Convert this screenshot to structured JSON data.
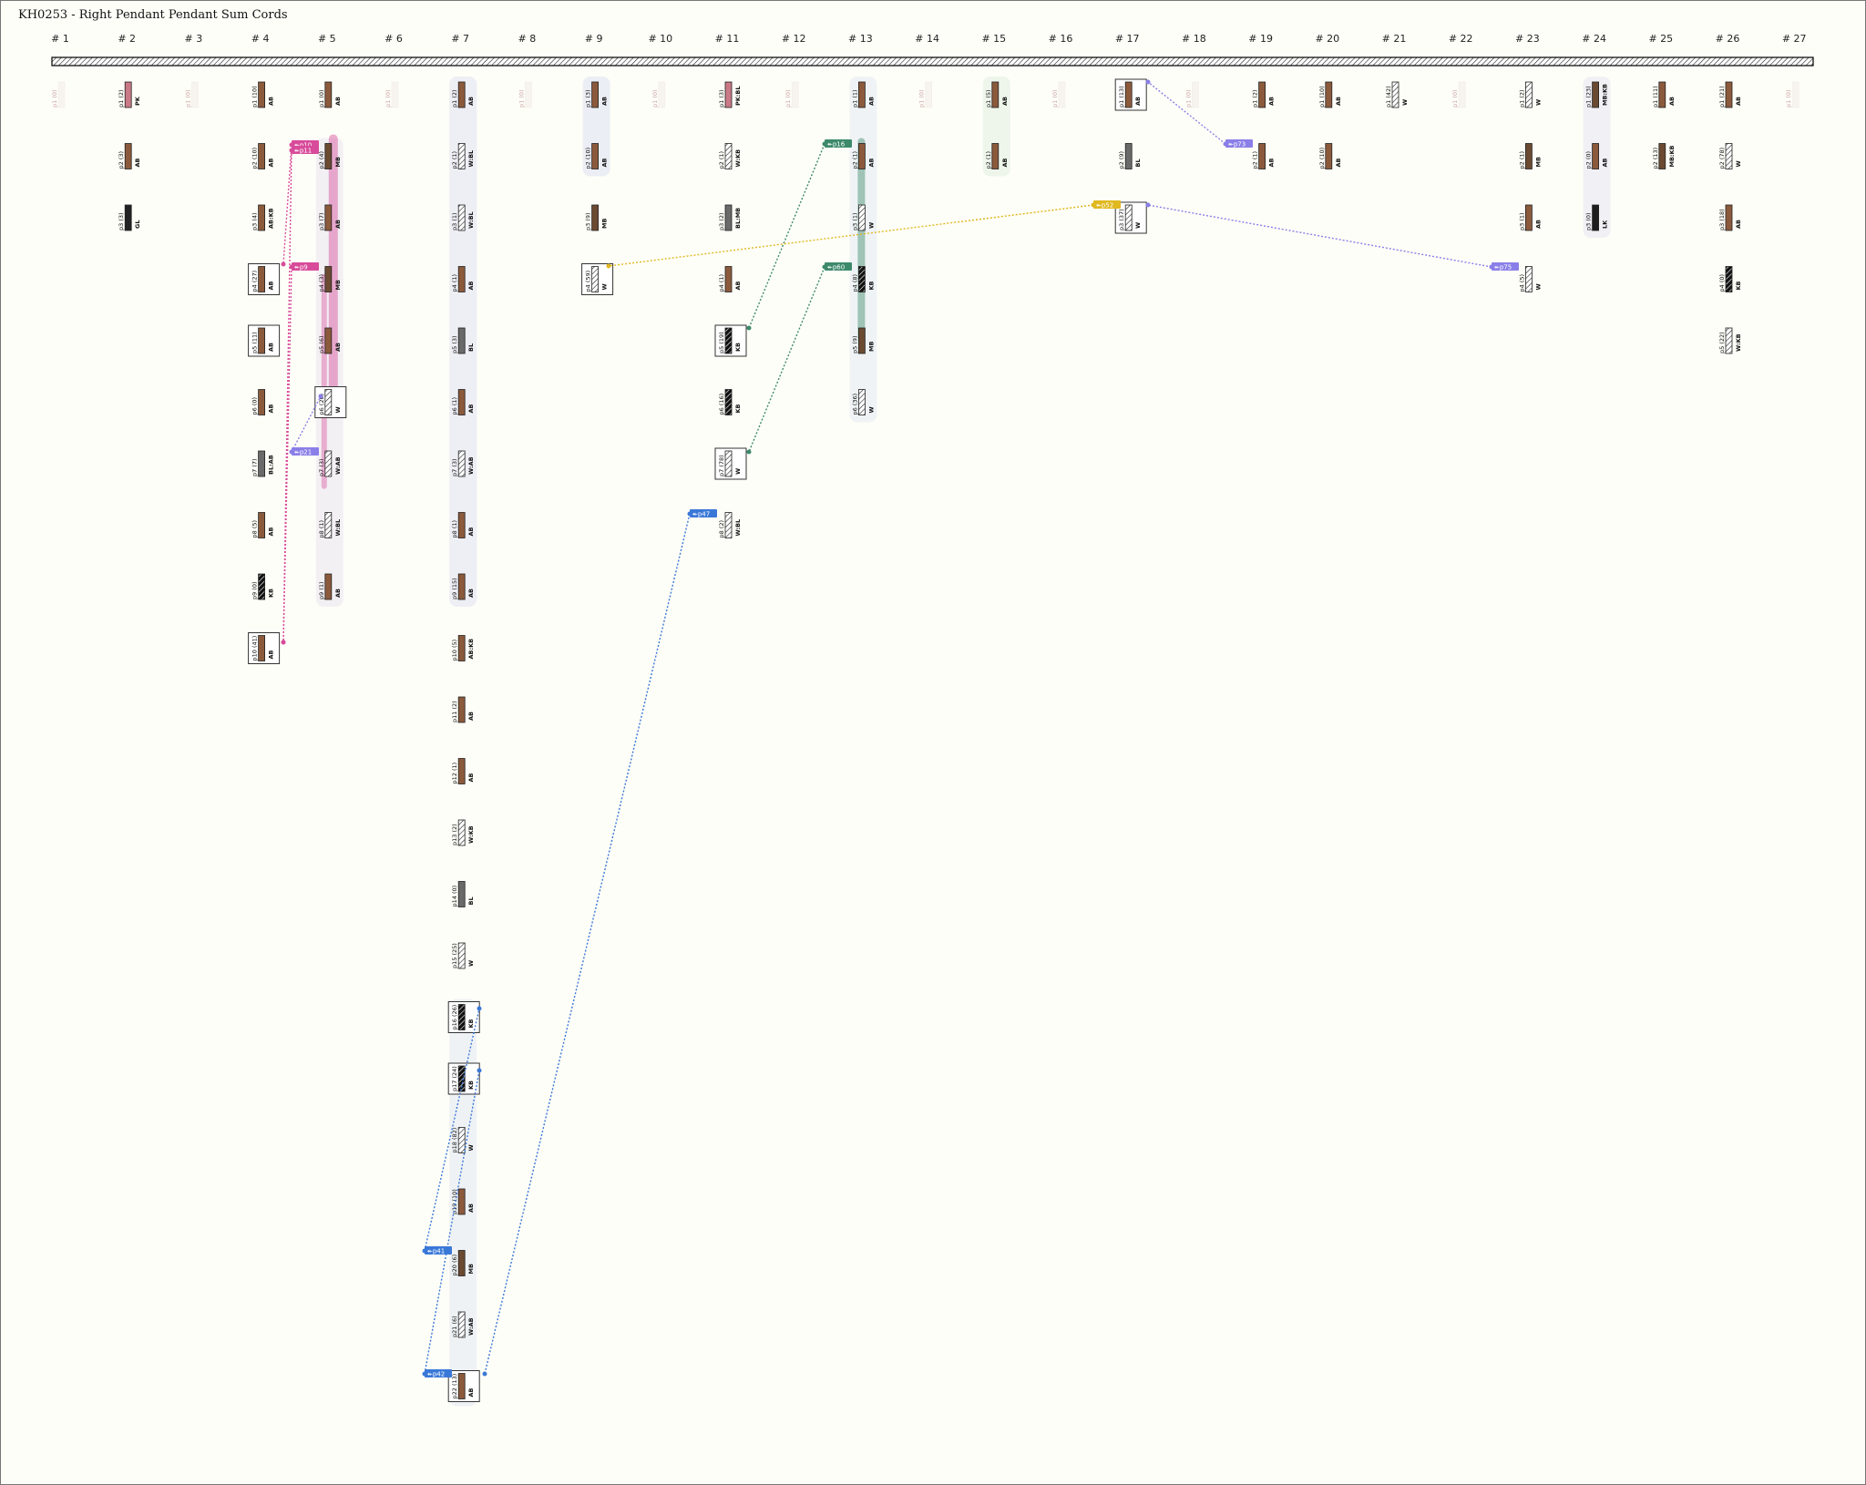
{
  "title": "KH0253 - Right Pendant Pendant Sum Cords",
  "colors": {
    "background": "#fefef8",
    "AB": "#8b5a3c",
    "KB": "#1a1a1a",
    "W": "#ffffff",
    "MB": "#6b4a32",
    "pink": "#d84b9a",
    "purple": "#8a7fe8",
    "green": "#3d8a6b",
    "blue": "#3a78d8",
    "gold": "#e0b820"
  },
  "columns": [
    {
      "label": "# 1",
      "ghost": true,
      "cords": [
        {
          "label": "p1 (0)",
          "color": "",
          "ghost": true
        }
      ]
    },
    {
      "label": "# 2",
      "cords": [
        {
          "label": "p1 (2)",
          "color": "PK"
        },
        {
          "label": "p2 (3)",
          "color": "AB"
        },
        {
          "label": "p3 (3)",
          "color": "GL"
        }
      ]
    },
    {
      "label": "# 3",
      "ghost": true,
      "cords": [
        {
          "label": "p1 (0)",
          "color": "",
          "ghost": true
        }
      ]
    },
    {
      "label": "# 4",
      "cords": [
        {
          "label": "p1 (10)",
          "color": "AB"
        },
        {
          "label": "p2 (10)",
          "color": "AB"
        },
        {
          "label": "p3 (4)",
          "color": "AB:KB"
        },
        {
          "label": "p4 (27)",
          "color": "AB",
          "boxed": true
        },
        {
          "label": "p5 (11)",
          "color": "AB",
          "boxed": true
        },
        {
          "label": "p6 (0)",
          "color": "AB"
        },
        {
          "label": "p7 (7)",
          "color": "BL:AB"
        },
        {
          "label": "p8 (5)",
          "color": "AB"
        },
        {
          "label": "p9 (0)",
          "color": "KB"
        },
        {
          "label": "p10 (41)",
          "color": "AB",
          "boxed": true
        }
      ]
    },
    {
      "label": "# 5",
      "cords": [
        {
          "label": "p1 (0)",
          "color": "AB"
        },
        {
          "label": "p2 (4)",
          "color": "MB"
        },
        {
          "label": "p3 (7)",
          "color": "AB"
        },
        {
          "label": "p4 (3)",
          "color": "MB"
        },
        {
          "label": "p5 (6)",
          "color": "AB"
        },
        {
          "label": "p6 (20)",
          "color": "W",
          "boxed": true
        },
        {
          "label": "p7 (3)",
          "color": "W:AB"
        },
        {
          "label": "p8 (1)",
          "color": "W:BL"
        },
        {
          "label": "p9 (1)",
          "color": "AB"
        }
      ]
    },
    {
      "label": "# 6",
      "ghost": true,
      "cords": [
        {
          "label": "p1 (0)",
          "color": "",
          "ghost": true
        }
      ]
    },
    {
      "label": "# 7",
      "cords": [
        {
          "label": "p1 (2)",
          "color": "AB"
        },
        {
          "label": "p2 (1)",
          "color": "W:BL"
        },
        {
          "label": "p3 (1)",
          "color": "W:BL"
        },
        {
          "label": "p4 (1)",
          "color": "AB"
        },
        {
          "label": "p5 (3)",
          "color": "BL"
        },
        {
          "label": "p6 (1)",
          "color": "AB"
        },
        {
          "label": "p7 (3)",
          "color": "W:AB"
        },
        {
          "label": "p8 (1)",
          "color": "AB"
        },
        {
          "label": "p9 (15)",
          "color": "AB"
        },
        {
          "label": "p10 (5)",
          "color": "AB:KB"
        },
        {
          "label": "p11 (2)",
          "color": "AB"
        },
        {
          "label": "p12 (1)",
          "color": "AB"
        },
        {
          "label": "p13 (2)",
          "color": "W:KB"
        },
        {
          "label": "p14 (0)",
          "color": "BL"
        },
        {
          "label": "p15 (25)",
          "color": "W"
        },
        {
          "label": "p16 (26)",
          "color": "KB",
          "boxed": true
        },
        {
          "label": "p17 (24)",
          "color": "KB",
          "boxed": true
        },
        {
          "label": "p18 (82)",
          "color": "W"
        },
        {
          "label": "p19 (10)",
          "color": "AB"
        },
        {
          "label": "p20 (6)",
          "color": "MB"
        },
        {
          "label": "p21 (6)",
          "color": "W:AB"
        },
        {
          "label": "p22 (13)",
          "color": "AB",
          "boxed": true
        }
      ]
    },
    {
      "label": "# 8",
      "ghost": true,
      "cords": [
        {
          "label": "p1 (0)",
          "color": "",
          "ghost": true
        }
      ]
    },
    {
      "label": "# 9",
      "cords": [
        {
          "label": "p1 (3)",
          "color": "AB"
        },
        {
          "label": "p2 (10)",
          "color": "AB"
        },
        {
          "label": "p3 (9)",
          "color": "MB"
        },
        {
          "label": "p4 (59)",
          "color": "W",
          "boxed": true
        }
      ]
    },
    {
      "label": "# 10",
      "ghost": true,
      "cords": [
        {
          "label": "p1 (0)",
          "color": "",
          "ghost": true
        }
      ]
    },
    {
      "label": "# 11",
      "cords": [
        {
          "label": "p1 (3)",
          "color": "PK:BL"
        },
        {
          "label": "p2 (1)",
          "color": "W:KB"
        },
        {
          "label": "p3 (2)",
          "color": "BL:MB"
        },
        {
          "label": "p4 (1)",
          "color": "AB"
        },
        {
          "label": "p5 (19)",
          "color": "KB",
          "boxed": true
        },
        {
          "label": "p6 (16)",
          "color": "KB"
        },
        {
          "label": "p7 (78)",
          "color": "W",
          "boxed": true
        },
        {
          "label": "p8 (2)",
          "color": "W:BL"
        }
      ]
    },
    {
      "label": "# 12",
      "ghost": true,
      "cords": [
        {
          "label": "p1 (0)",
          "color": "",
          "ghost": true
        }
      ]
    },
    {
      "label": "# 13",
      "cords": [
        {
          "label": "p1 (1)",
          "color": "AB"
        },
        {
          "label": "p2 (1)",
          "color": "AB"
        },
        {
          "label": "p3 (1)",
          "color": "W"
        },
        {
          "label": "p4 (8)",
          "color": "KB"
        },
        {
          "label": "p5 (9)",
          "color": "MB"
        },
        {
          "label": "p6 (36)",
          "color": "W"
        }
      ]
    },
    {
      "label": "# 14",
      "ghost": true,
      "cords": [
        {
          "label": "p1 (0)",
          "color": "",
          "ghost": true
        }
      ]
    },
    {
      "label": "# 15",
      "cords": [
        {
          "label": "p1 (5)",
          "color": "AB"
        },
        {
          "label": "p2 (1)",
          "color": "AB"
        }
      ]
    },
    {
      "label": "# 16",
      "ghost": true,
      "cords": [
        {
          "label": "p1 (0)",
          "color": "",
          "ghost": true
        }
      ]
    },
    {
      "label": "# 17",
      "cords": [
        {
          "label": "p1 (13)",
          "color": "AB",
          "boxed": true
        },
        {
          "label": "p2 (9)",
          "color": "BL"
        },
        {
          "label": "p3 (37)",
          "color": "W",
          "boxed": true
        }
      ]
    },
    {
      "label": "# 18",
      "ghost": true,
      "cords": [
        {
          "label": "p1 (0)",
          "color": "",
          "ghost": true
        }
      ]
    },
    {
      "label": "# 19",
      "cords": [
        {
          "label": "p1 (2)",
          "color": "AB"
        },
        {
          "label": "p2 (1)",
          "color": "AB"
        }
      ]
    },
    {
      "label": "# 20",
      "cords": [
        {
          "label": "p1 (10)",
          "color": "AB"
        },
        {
          "label": "p2 (10)",
          "color": "AB"
        }
      ]
    },
    {
      "label": "# 21",
      "cords": [
        {
          "label": "p1 (42)",
          "color": "W"
        }
      ]
    },
    {
      "label": "# 22",
      "ghost": true,
      "cords": [
        {
          "label": "p1 (0)",
          "color": "",
          "ghost": true
        }
      ]
    },
    {
      "label": "# 23",
      "cords": [
        {
          "label": "p1 (2)",
          "color": "W"
        },
        {
          "label": "p2 (1)",
          "color": "MB"
        },
        {
          "label": "p3 (1)",
          "color": "AB"
        },
        {
          "label": "p4 (5)",
          "color": "W"
        }
      ]
    },
    {
      "label": "# 24",
      "cords": [
        {
          "label": "p1 (23)",
          "color": "MB:KB"
        },
        {
          "label": "p2 (0)",
          "color": "AB"
        },
        {
          "label": "p3 (0)",
          "color": "LK"
        }
      ]
    },
    {
      "label": "# 25",
      "cords": [
        {
          "label": "p1 (11)",
          "color": "AB"
        },
        {
          "label": "p2 (13)",
          "color": "MB:KB"
        }
      ]
    },
    {
      "label": "# 26",
      "cords": [
        {
          "label": "p1 (21)",
          "color": "AB"
        },
        {
          "label": "p2 (78)",
          "color": "W"
        },
        {
          "label": "p3 (18)",
          "color": "AB"
        },
        {
          "label": "p4 (0)",
          "color": "KB"
        },
        {
          "label": "p5 (22)",
          "color": "W:KB"
        }
      ]
    },
    {
      "label": "# 27",
      "ghost": true,
      "cords": [
        {
          "label": "p1 (0)",
          "color": "",
          "ghost": true
        }
      ]
    }
  ],
  "sum_tags": [
    {
      "label": "↞p10",
      "color": "pink"
    },
    {
      "label": "↞p11",
      "color": "pink"
    },
    {
      "label": "↞p9",
      "color": "pink"
    },
    {
      "label": "↞p21",
      "color": "purple"
    },
    {
      "label": "↞p16",
      "color": "green"
    },
    {
      "label": "↞p60",
      "color": "green"
    },
    {
      "label": "↞p47",
      "color": "blue"
    },
    {
      "label": "↞p41",
      "color": "blue"
    },
    {
      "label": "↞p42",
      "color": "blue"
    },
    {
      "label": "↞p52",
      "color": "gold"
    },
    {
      "label": "↞p73",
      "color": "purple"
    },
    {
      "label": "↞p75",
      "color": "purple"
    }
  ]
}
